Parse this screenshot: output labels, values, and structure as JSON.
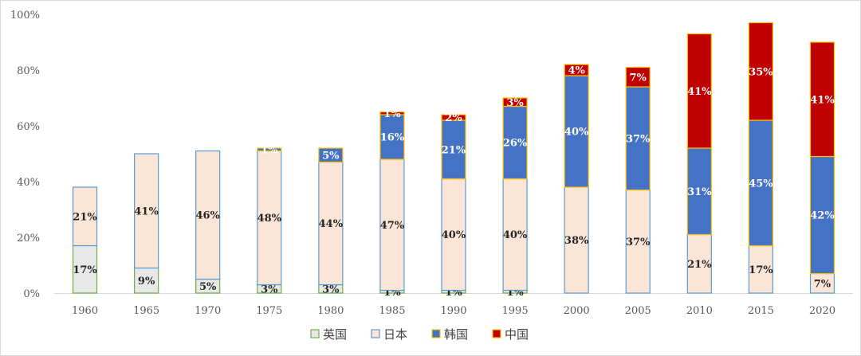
{
  "chart_data": {
    "type": "bar",
    "stacked": true,
    "categories": [
      "1960",
      "1965",
      "1970",
      "1975",
      "1980",
      "1985",
      "1990",
      "1995",
      "2000",
      "2005",
      "2010",
      "2015",
      "2020"
    ],
    "ylim": [
      0,
      100
    ],
    "yticks": [
      "0%",
      "20%",
      "40%",
      "60%",
      "80%",
      "100%"
    ],
    "grid": false,
    "legend_position": "bottom",
    "series": [
      {
        "name": "英国",
        "color": "#e8e8e8",
        "stroke": "#70ad47",
        "values": [
          17,
          9,
          5,
          3,
          3,
          1,
          1,
          1,
          0,
          0,
          0,
          0,
          0
        ],
        "labels": [
          "17%",
          "9%",
          "5%",
          "3%",
          "3%",
          "1%",
          "1%",
          "1%",
          "",
          "",
          "",
          "",
          ""
        ]
      },
      {
        "name": "日本",
        "color": "#fbe5d6",
        "stroke": "#5b9bd5",
        "values": [
          21,
          41,
          46,
          48,
          44,
          47,
          40,
          40,
          38,
          37,
          21,
          17,
          7
        ],
        "labels": [
          "21%",
          "41%",
          "46%",
          "48%",
          "44%",
          "47%",
          "40%",
          "40%",
          "38%",
          "37%",
          "21%",
          "17%",
          "7%"
        ]
      },
      {
        "name": "韩国",
        "color": "#4472c4",
        "stroke": "#ffc000",
        "values": [
          0,
          0,
          0,
          1,
          5,
          16,
          21,
          26,
          40,
          37,
          31,
          45,
          42
        ],
        "labels": [
          "",
          "",
          "",
          "1%",
          "5%",
          "16%",
          "21%",
          "26%",
          "40%",
          "37%",
          "31%",
          "45%",
          "42%"
        ]
      },
      {
        "name": "中国",
        "color": "#c00000",
        "stroke": "#ffc000",
        "values": [
          0,
          0,
          0,
          0,
          0,
          1,
          2,
          3,
          4,
          7,
          41,
          35,
          41
        ],
        "labels": [
          "",
          "",
          "",
          "",
          "",
          "1%",
          "2%",
          "3%",
          "4%",
          "7%",
          "41%",
          "35%",
          "41%"
        ]
      }
    ]
  }
}
